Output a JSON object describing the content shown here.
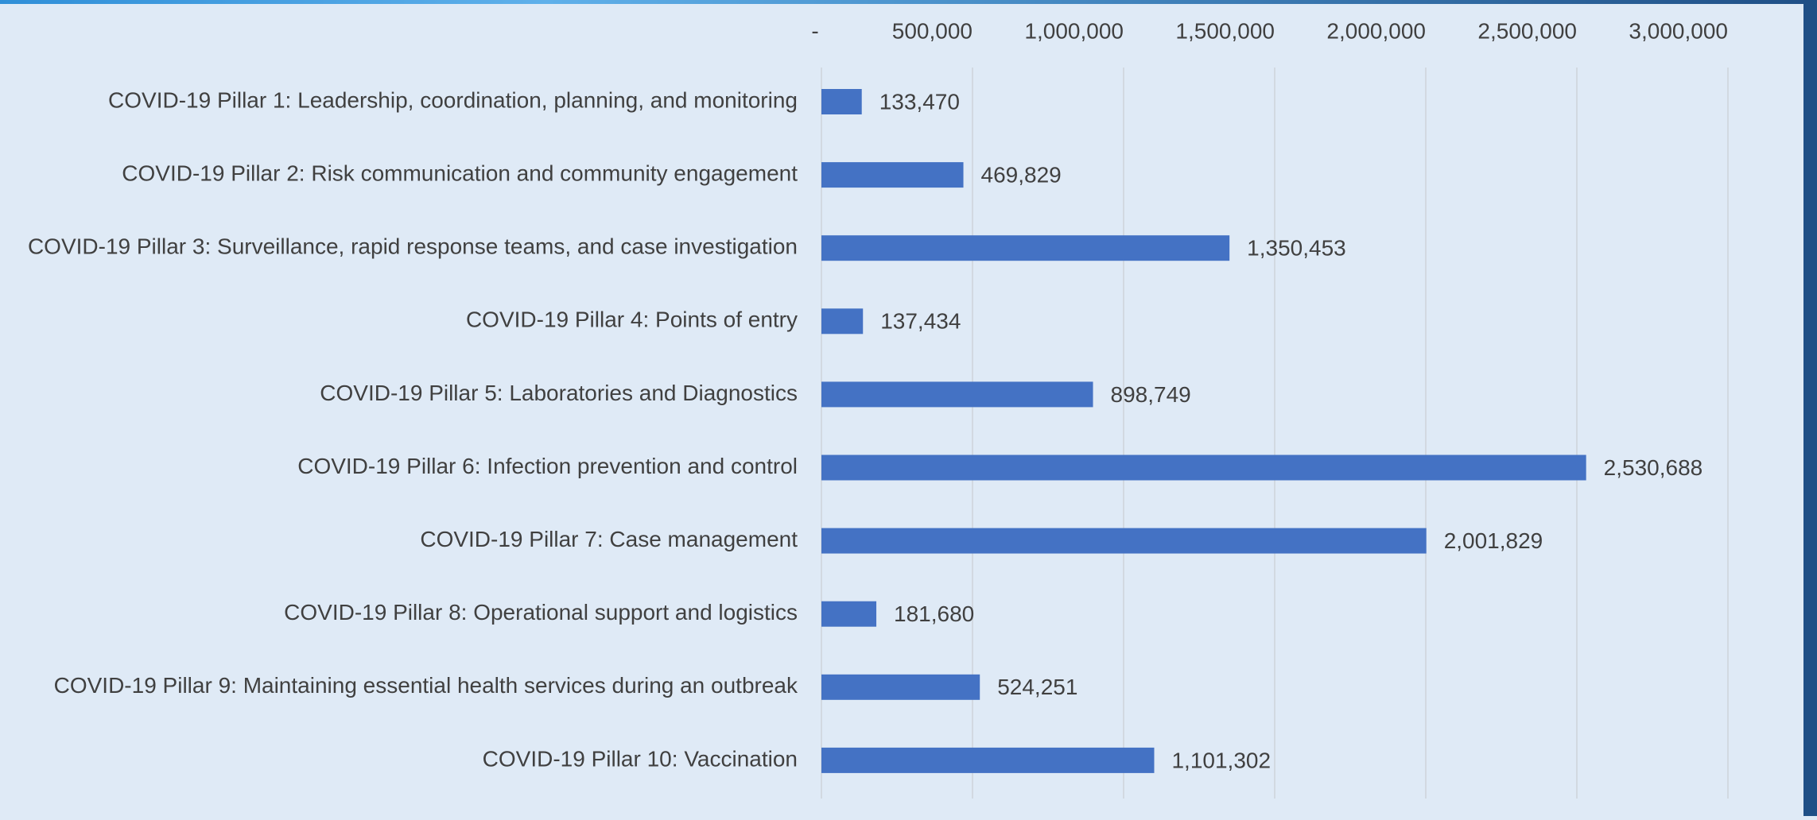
{
  "chart_data": {
    "type": "bar",
    "orientation": "horizontal",
    "color": "#4472c4",
    "categories": [
      "COVID-19 Pillar 1: Leadership, coordination, planning, and monitoring",
      "COVID-19 Pillar 2: Risk communication and community engagement",
      "COVID-19 Pillar 3: Surveillance, rapid response teams, and case investigation",
      "COVID-19 Pillar 4: Points of entry",
      "COVID-19 Pillar 5: Laboratories and Diagnostics",
      "COVID-19 Pillar 6: Infection prevention and control",
      "COVID-19 Pillar 7: Case management",
      "COVID-19 Pillar 8: Operational support and logistics",
      "COVID-19 Pillar 9: Maintaining essential health services during an outbreak",
      "COVID-19 Pillar 10: Vaccination"
    ],
    "values": [
      133470,
      469829,
      1350453,
      137434,
      898749,
      2530688,
      2001829,
      181680,
      524251,
      1101302
    ],
    "value_labels": [
      "133,470",
      "469,829",
      "1,350,453",
      "137,434",
      "898,749",
      "2,530,688",
      "2,001,829",
      "181,680",
      "524,251",
      "1,101,302"
    ],
    "xlim": [
      0,
      3000000
    ],
    "xticks": [
      {
        "value": 0,
        "label": "-"
      },
      {
        "value": 500000,
        "label": "500,000"
      },
      {
        "value": 1000000,
        "label": "1,000,000"
      },
      {
        "value": 1500000,
        "label": "1,500,000"
      },
      {
        "value": 2000000,
        "label": "2,000,000"
      },
      {
        "value": 2500000,
        "label": "2,500,000"
      },
      {
        "value": 3000000,
        "label": "3,000,000"
      }
    ],
    "grid": true
  }
}
